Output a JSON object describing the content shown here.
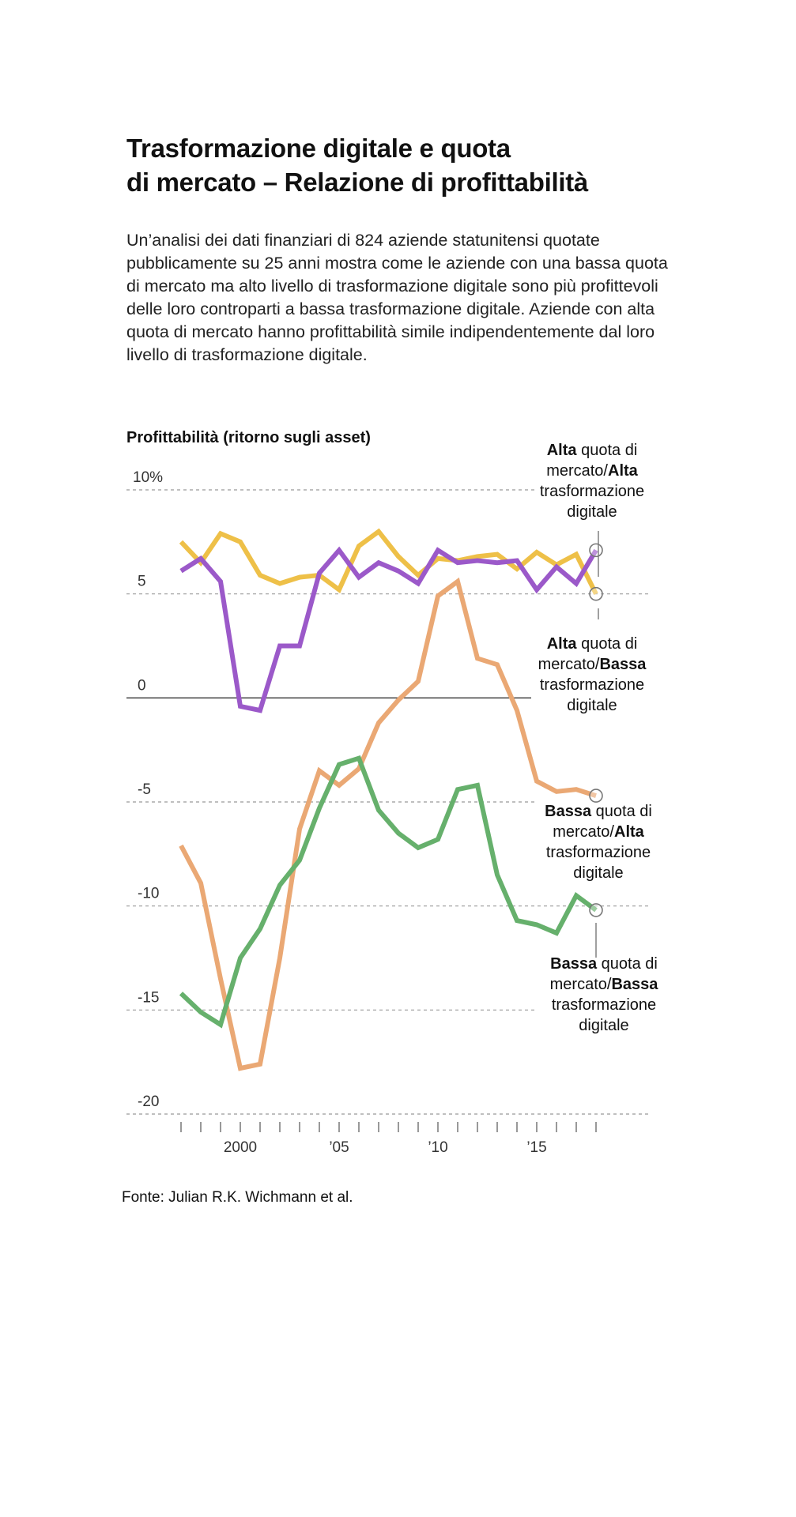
{
  "title_line1": "Trasformazione digitale e quota",
  "title_line2": "di mercato – Relazione di profittabilità",
  "subtitle": "Un’analisi dei dati finanziari di 824 aziende statunitensi quotate pubblicamente su 25 anni mostra come le aziende con una bassa quota di mercato ma alto livello di trasformazione digitale sono più profittevoli delle loro controparti a bassa trasformazione digitale. Aziende con alta quota di mercato hanno profittabilità simile indipendentemente dal loro livello di trasformazione digitale.",
  "source": "Fonte: Julian R.K. Wichmann et al.",
  "chart_data": {
    "type": "line",
    "ylabel": "Profittabilità (ritorno sugli asset)",
    "ylim": [
      -20,
      10
    ],
    "yticks": [
      {
        "value": 10,
        "label": "10%"
      },
      {
        "value": 5,
        "label": "5"
      },
      {
        "value": 0,
        "label": "0"
      },
      {
        "value": -5,
        "label": "-5"
      },
      {
        "value": -10,
        "label": "-10"
      },
      {
        "value": -15,
        "label": "-15"
      },
      {
        "value": -20,
        "label": "-20"
      }
    ],
    "xlim": [
      1997,
      2018
    ],
    "xticks": [
      {
        "value": 2000,
        "label": "2000"
      },
      {
        "value": 2005,
        "label": "’05"
      },
      {
        "value": 2010,
        "label": "’10"
      },
      {
        "value": 2015,
        "label": "’15"
      }
    ],
    "x": [
      1997,
      1998,
      1999,
      2000,
      2001,
      2002,
      2003,
      2004,
      2005,
      2006,
      2007,
      2008,
      2009,
      2010,
      2011,
      2012,
      2013,
      2014,
      2015,
      2016,
      2017,
      2018
    ],
    "series": [
      {
        "name": "Alta quota di mercato/Bassa trasformazione digitale",
        "label_parts": [
          [
            {
              "t": "Alta",
              "b": true
            },
            {
              "t": " quota di",
              "b": false
            }
          ],
          [
            {
              "t": "mercato/",
              "b": false
            },
            {
              "t": "Bassa",
              "b": true
            }
          ],
          [
            {
              "t": "trasformazione",
              "b": false
            }
          ],
          [
            {
              "t": "digitale",
              "b": false
            }
          ]
        ],
        "color": "#EEC048",
        "values": [
          7.5,
          6.5,
          7.9,
          7.5,
          5.9,
          5.5,
          5.8,
          5.9,
          5.2,
          7.3,
          8.0,
          6.8,
          5.9,
          6.7,
          6.6,
          6.8,
          6.9,
          6.2,
          7.0,
          6.4,
          6.9,
          5.0
        ]
      },
      {
        "name": "Alta quota di mercato/Alta trasformazione digitale",
        "label_parts": [
          [
            {
              "t": "Alta",
              "b": true
            },
            {
              "t": " quota di",
              "b": false
            }
          ],
          [
            {
              "t": "mercato/",
              "b": false
            },
            {
              "t": "Alta",
              "b": true
            }
          ],
          [
            {
              "t": "trasformazione",
              "b": false
            }
          ],
          [
            {
              "t": "digitale",
              "b": false
            }
          ]
        ],
        "color": "#9B59C9",
        "values": [
          6.1,
          6.7,
          5.6,
          -0.4,
          -0.6,
          2.5,
          2.5,
          6.0,
          7.1,
          5.8,
          6.5,
          6.1,
          5.5,
          7.1,
          6.5,
          6.6,
          6.5,
          6.6,
          5.2,
          6.3,
          5.5,
          7.1
        ]
      },
      {
        "name": "Bassa quota di mercato/Alta trasformazione digitale",
        "label_parts": [
          [
            {
              "t": "Bassa",
              "b": true
            },
            {
              "t": " quota di",
              "b": false
            }
          ],
          [
            {
              "t": "mercato/",
              "b": false
            },
            {
              "t": "Alta",
              "b": true
            }
          ],
          [
            {
              "t": "trasformazione",
              "b": false
            }
          ],
          [
            {
              "t": "digitale",
              "b": false
            }
          ]
        ],
        "color": "#EAA874",
        "values": [
          -7.1,
          -8.9,
          -13.5,
          -17.8,
          -17.6,
          -12.5,
          -6.3,
          -3.5,
          -4.2,
          -3.4,
          -1.2,
          -0.1,
          0.8,
          4.9,
          5.6,
          1.9,
          1.6,
          -0.6,
          -4.0,
          -4.5,
          -4.4,
          -4.7
        ]
      },
      {
        "name": "Bassa quota di mercato/Bassa trasformazione digitale",
        "label_parts": [
          [
            {
              "t": "Bassa",
              "b": true
            },
            {
              "t": " quota di",
              "b": false
            }
          ],
          [
            {
              "t": "mercato/",
              "b": false
            },
            {
              "t": "Bassa",
              "b": true
            }
          ],
          [
            {
              "t": "trasformazione",
              "b": false
            }
          ],
          [
            {
              "t": "digitale",
              "b": false
            }
          ]
        ],
        "color": "#66B06C",
        "values": [
          -14.2,
          -15.1,
          -15.7,
          -12.5,
          -11.1,
          -9.0,
          -7.8,
          -5.3,
          -3.2,
          -2.9,
          -5.4,
          -6.5,
          -7.2,
          -6.8,
          -4.4,
          -4.2,
          -8.5,
          -10.7,
          -10.9,
          -11.3,
          -9.5,
          -10.2
        ]
      }
    ]
  }
}
